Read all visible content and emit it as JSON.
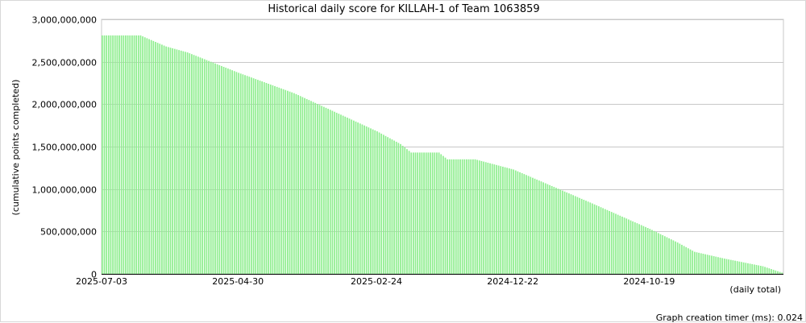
{
  "chart_data": {
    "type": "bar",
    "title": "Historical daily score for KILLAH-1 of Team 1063859",
    "ylabel": "(cumulative points completed)",
    "xlabel": "(daily total)",
    "ylim": [
      0,
      3000000000
    ],
    "y_ticks": [
      {
        "value": 0,
        "label": "0"
      },
      {
        "value": 500000000,
        "label": "500,000,000"
      },
      {
        "value": 1000000000,
        "label": "1,000,000,000"
      },
      {
        "value": 1500000000,
        "label": "1,500,000,000"
      },
      {
        "value": 2000000000,
        "label": "2,000,000,000"
      },
      {
        "value": 2500000000,
        "label": "2,500,000,000"
      },
      {
        "value": 3000000000,
        "label": "3,000,000,000"
      }
    ],
    "x_ticks": [
      {
        "index": 0,
        "label": "2025-07-03"
      },
      {
        "index": 64,
        "label": "2025-04-30"
      },
      {
        "index": 129,
        "label": "2025-02-24"
      },
      {
        "index": 193,
        "label": "2024-12-22"
      },
      {
        "index": 257,
        "label": "2024-10-19"
      }
    ],
    "grid": true,
    "bar_color": "#90ee90",
    "bar_count": 320,
    "profile": [
      [
        0,
        2810000000
      ],
      [
        18,
        2810000000
      ],
      [
        30,
        2680000000
      ],
      [
        40,
        2610000000
      ],
      [
        64,
        2370000000
      ],
      [
        90,
        2130000000
      ],
      [
        129,
        1680000000
      ],
      [
        140,
        1530000000
      ],
      [
        145,
        1430000000
      ],
      [
        158,
        1430000000
      ],
      [
        162,
        1350000000
      ],
      [
        175,
        1350000000
      ],
      [
        193,
        1230000000
      ],
      [
        230,
        830000000
      ],
      [
        257,
        530000000
      ],
      [
        270,
        370000000
      ],
      [
        278,
        260000000
      ],
      [
        292,
        180000000
      ],
      [
        310,
        90000000
      ],
      [
        319,
        15000000
      ]
    ]
  },
  "footer": {
    "timer_text": "Graph creation timer (ms): 0.024"
  }
}
